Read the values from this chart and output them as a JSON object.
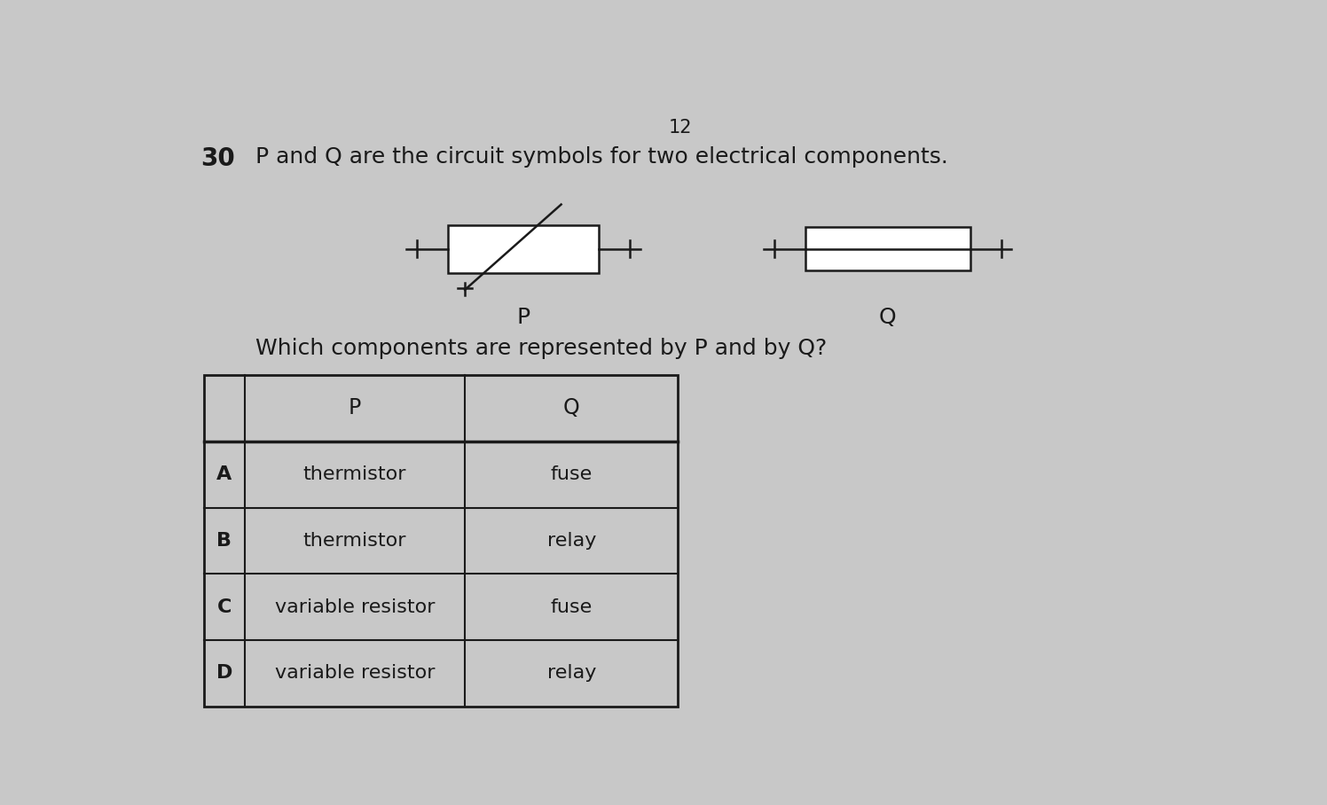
{
  "page_number": "12",
  "question_number": "30",
  "question_text": "P and Q are the circuit symbols for two electrical components.",
  "sub_question": "Which components are represented by P and by Q?",
  "label_P": "P",
  "label_Q": "Q",
  "table_headers": [
    "",
    "P",
    "Q"
  ],
  "table_rows": [
    [
      "A",
      "thermistor",
      "fuse"
    ],
    [
      "B",
      "thermistor",
      "relay"
    ],
    [
      "C",
      "variable resistor",
      "fuse"
    ],
    [
      "D",
      "variable resistor",
      "relay"
    ]
  ],
  "bg_color": "#c8c8c8",
  "text_color": "#1a1a1a",
  "font_size_main": 18,
  "font_size_table": 16,
  "font_size_page": 15,
  "font_size_qnum": 20
}
